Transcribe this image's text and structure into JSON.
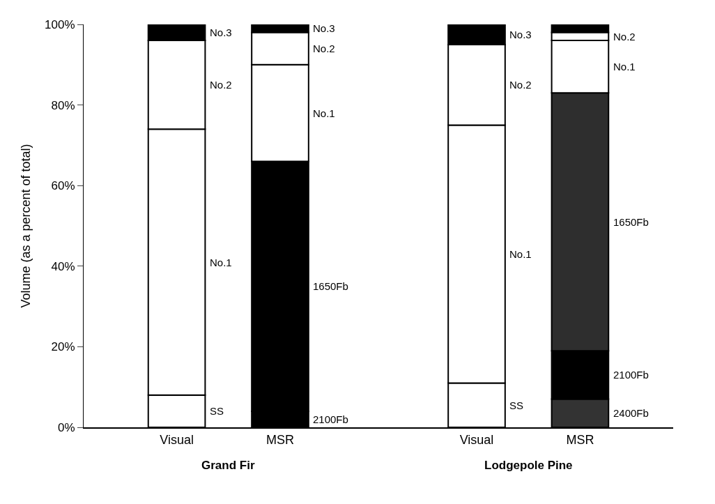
{
  "chart_data": {
    "type": "bar",
    "stacked": true,
    "ylabel": "Volume (as a percent of total)",
    "categories": [
      "Visual",
      "MSR",
      "Visual",
      "MSR"
    ],
    "series": [
      {
        "name": "SS",
        "color": "#ffffff",
        "values": [
          8,
          null,
          11,
          null
        ]
      },
      {
        "name": "2400Fb",
        "color": "#333333",
        "values": [
          null,
          null,
          null,
          7
        ]
      },
      {
        "name": "2100Fb",
        "color": "#000000",
        "values": [
          null,
          4,
          null,
          12
        ]
      },
      {
        "name": "1650Fb",
        "colors": [
          "#ffffff",
          "#000000",
          "#ffffff",
          "#2e2e2e"
        ],
        "values": [
          null,
          62,
          null,
          64
        ]
      },
      {
        "name": "No.1",
        "color": "#ffffff",
        "values": [
          66,
          24,
          64,
          13
        ]
      },
      {
        "name": "No.2",
        "color": "#ffffff",
        "values": [
          22,
          8,
          20,
          2
        ]
      },
      {
        "name": "No.3",
        "color": "#000000",
        "values": [
          4,
          2,
          5,
          2
        ]
      }
    ],
    "annotations": [
      "Grand Fir",
      "Lodgepole Pine"
    ],
    "ylim": [
      0,
      100
    ],
    "yticks": [
      {
        "value": 0,
        "label": "0%"
      },
      {
        "value": 20,
        "label": "20%"
      },
      {
        "value": 40,
        "label": "40%"
      },
      {
        "value": 60,
        "label": "60%"
      },
      {
        "value": 80,
        "label": "80%"
      },
      {
        "value": 100,
        "label": "100%"
      }
    ],
    "legend": false
  }
}
